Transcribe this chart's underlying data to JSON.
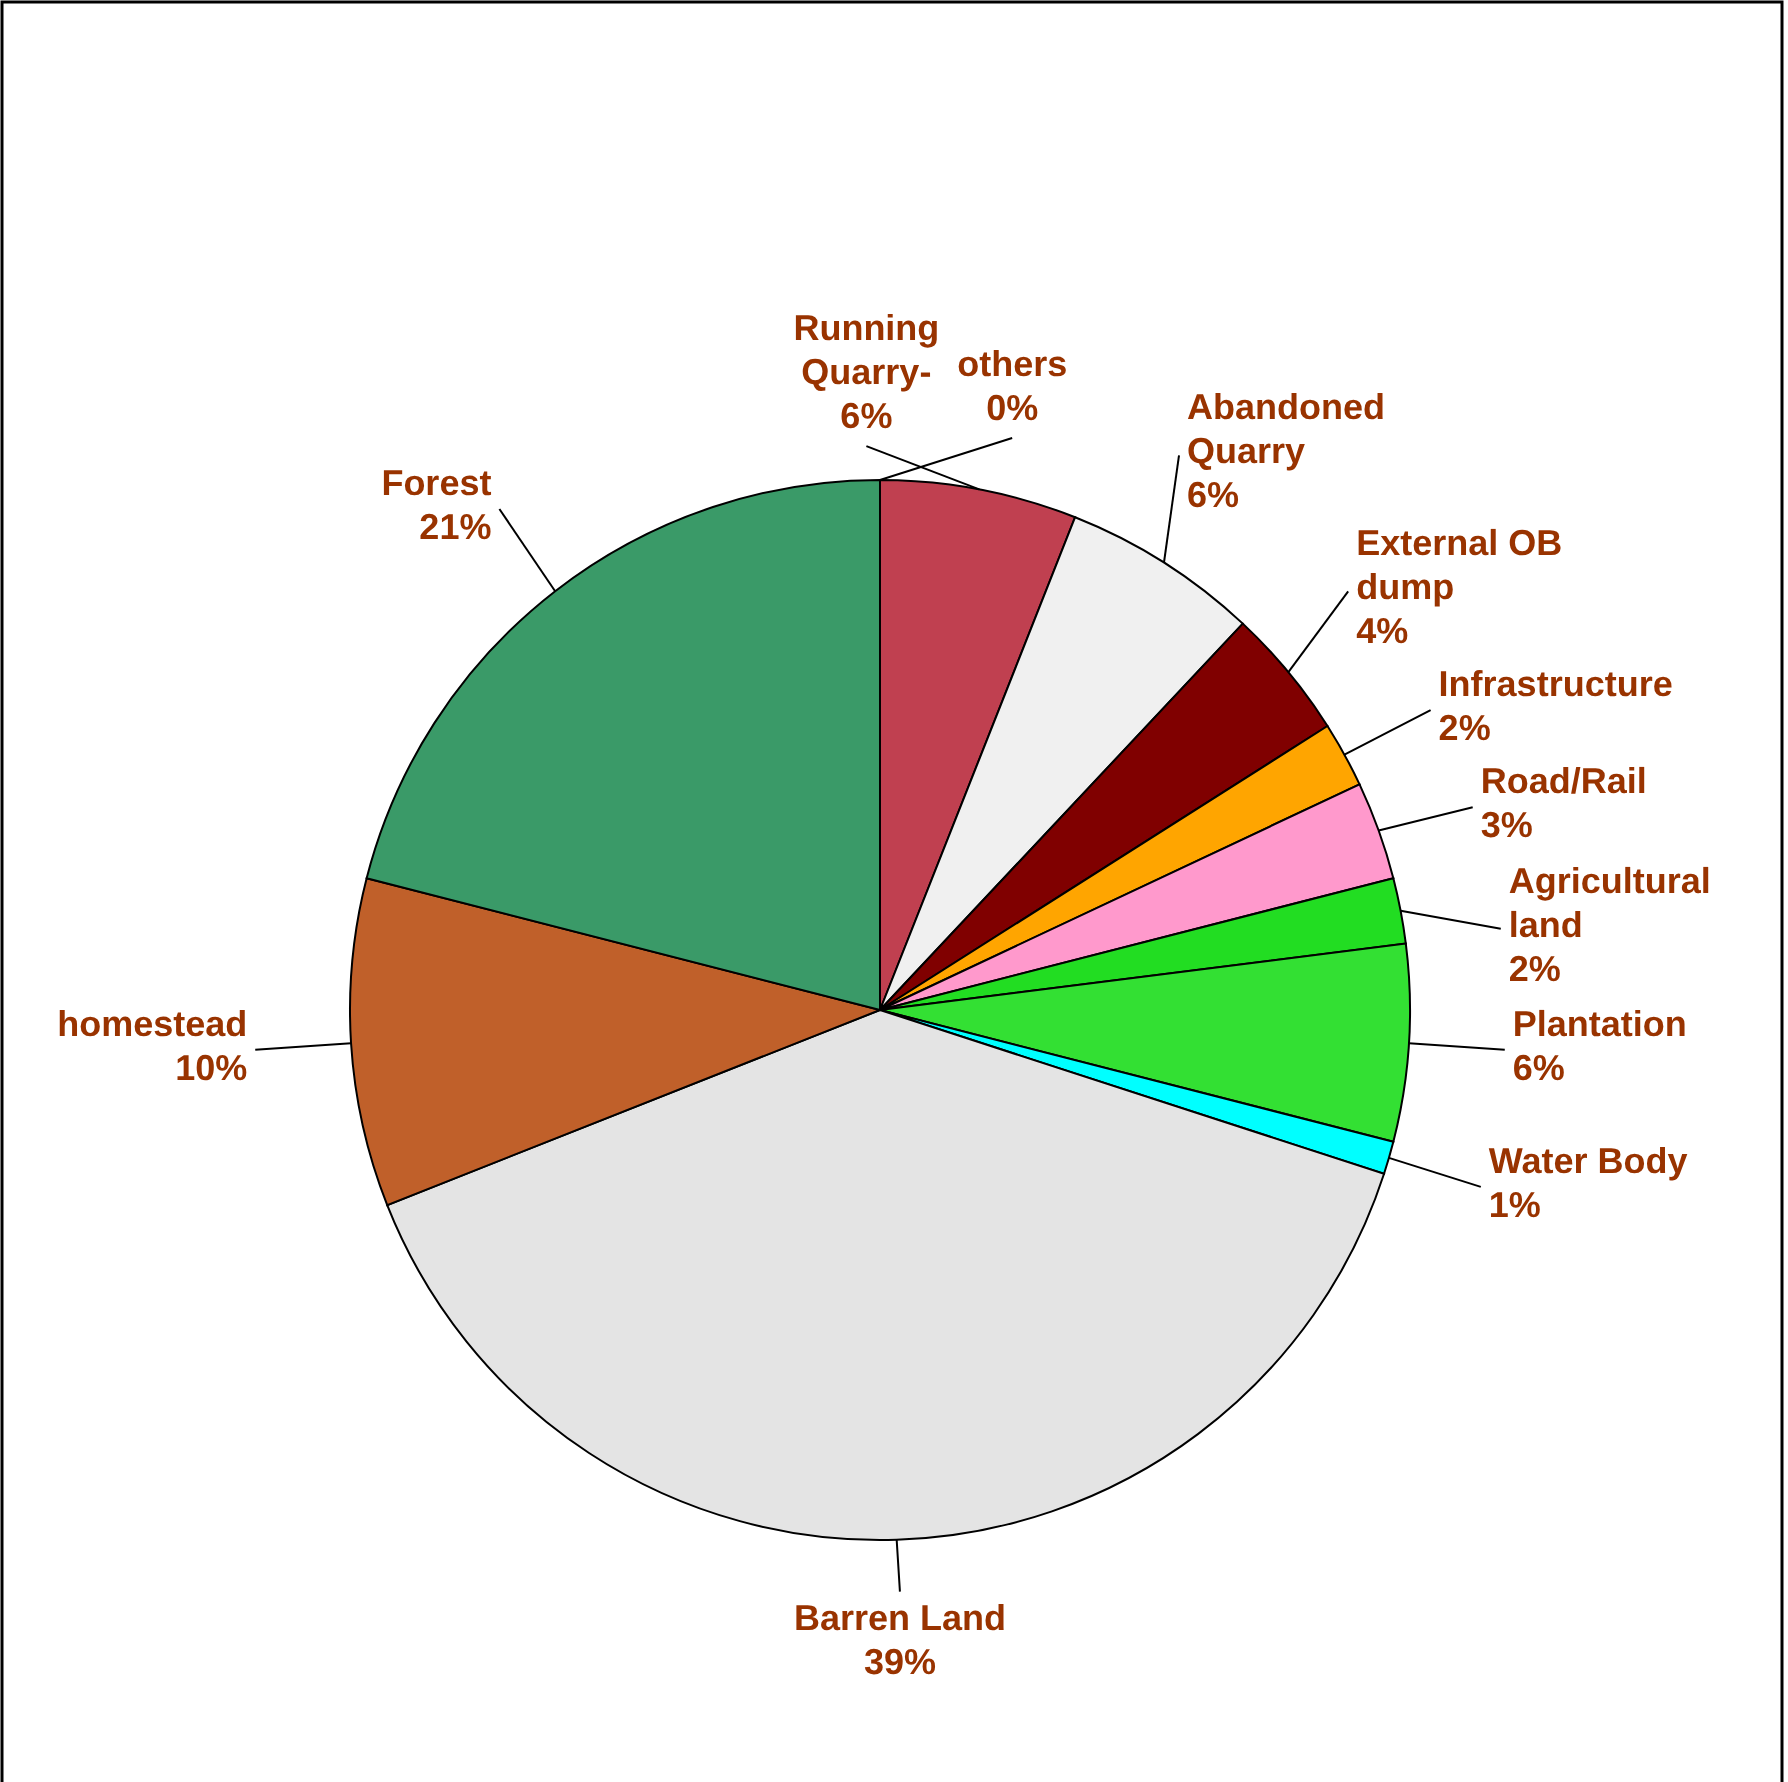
{
  "chart_data": {
    "type": "pie",
    "categories": [
      "Running Quarry-",
      "Abandoned Quarry",
      "External OB dump",
      "Infrastructure",
      "Road/Rail",
      "Agricultural land",
      "Plantation",
      "Water Body",
      "Barren Land",
      "homestead",
      "Forest",
      "others"
    ],
    "values": [
      6,
      6,
      4,
      2,
      3,
      2,
      6,
      1,
      39,
      10,
      21,
      0
    ],
    "value_labels": [
      "6%",
      "6%",
      "4%",
      "2%",
      "3%",
      "2%",
      "6%",
      "1%",
      "39%",
      "10%",
      "21%",
      "0%"
    ],
    "colors": [
      "#c04050",
      "#f0f0f0",
      "#800000",
      "#ffa500",
      "#ff99cc",
      "#22dd22",
      "#33e033",
      "#00ffff",
      "#e4e4e4",
      "#c0602a",
      "#3a9a68",
      "#00cc00"
    ]
  }
}
